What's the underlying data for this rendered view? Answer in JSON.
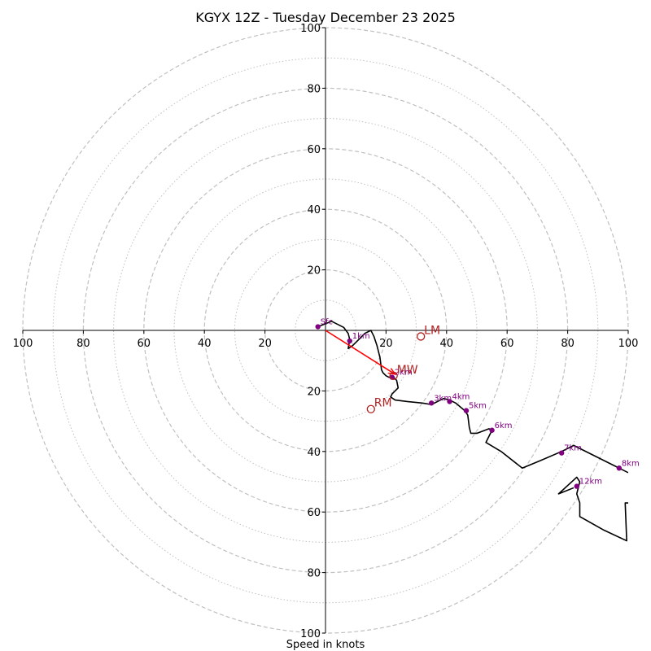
{
  "chart_data": {
    "type": "hodograph",
    "title": "KGYX 12Z - Tuesday December 23 2025",
    "xlabel": "Speed in knots",
    "range": [
      -100,
      100
    ],
    "ring_major_knots": [
      20,
      40,
      60,
      80,
      100
    ],
    "ring_minor_knots": [
      10,
      30,
      50,
      70,
      90
    ],
    "x_tick_labels": [
      "100",
      "80",
      "60",
      "40",
      "20",
      "20",
      "40",
      "60",
      "80",
      "100"
    ],
    "x_tick_values": [
      -100,
      -80,
      -60,
      -40,
      -20,
      20,
      40,
      60,
      80,
      100
    ],
    "y_tick_labels": [
      "100",
      "80",
      "60",
      "40",
      "20",
      "20",
      "40",
      "60",
      "80",
      "100"
    ],
    "y_tick_values": [
      100,
      80,
      60,
      40,
      20,
      -20,
      -40,
      -60,
      -80,
      -100
    ],
    "trace": [
      [
        -2.5,
        1.2
      ],
      [
        2,
        3
      ],
      [
        6,
        1
      ],
      [
        7.5,
        -1
      ],
      [
        8,
        -3
      ],
      [
        7.5,
        -6
      ],
      [
        9,
        -5
      ],
      [
        11,
        -3
      ],
      [
        13,
        -1
      ],
      [
        15,
        0
      ],
      [
        16,
        -2
      ],
      [
        17,
        -5
      ],
      [
        18,
        -9
      ],
      [
        18.5,
        -13
      ],
      [
        19,
        -14
      ],
      [
        20,
        -15
      ],
      [
        21,
        -15.5
      ],
      [
        22,
        -15
      ],
      [
        23.5,
        -16.5
      ],
      [
        24,
        -19
      ],
      [
        22,
        -21
      ],
      [
        21.5,
        -22
      ],
      [
        23,
        -23
      ],
      [
        27,
        -23.5
      ],
      [
        32,
        -24
      ],
      [
        35,
        -24.5
      ],
      [
        37,
        -23.5
      ],
      [
        39,
        -22.5
      ],
      [
        41,
        -23
      ],
      [
        43,
        -24
      ],
      [
        46,
        -26.5
      ],
      [
        47,
        -28
      ],
      [
        47.5,
        -32
      ],
      [
        48,
        -34
      ],
      [
        50,
        -34
      ],
      [
        54,
        -32.5
      ],
      [
        55,
        -33
      ],
      [
        53,
        -37
      ],
      [
        58,
        -40
      ],
      [
        65,
        -45.5
      ],
      [
        71,
        -43
      ],
      [
        78,
        -40
      ],
      [
        82,
        -38
      ],
      [
        90,
        -42
      ],
      [
        97,
        -45.5
      ],
      [
        100,
        -47
      ]
    ],
    "trace2": [
      [
        100,
        -57
      ],
      [
        99,
        -57
      ],
      [
        99.5,
        -69.5
      ],
      [
        92,
        -66
      ],
      [
        84,
        -61.5
      ],
      [
        84,
        -57
      ],
      [
        83,
        -54
      ],
      [
        84,
        -50
      ],
      [
        83,
        -48.5
      ],
      [
        77,
        -54
      ],
      [
        82,
        -52
      ]
    ],
    "height_markers": [
      {
        "label": "Sfc",
        "u": -2.5,
        "v": 1.2
      },
      {
        "label": "1km",
        "u": 8,
        "v": -3.5
      },
      {
        "label": "2km",
        "u": 22,
        "v": -15.5
      },
      {
        "label": "3km",
        "u": 35,
        "v": -24
      },
      {
        "label": "4km",
        "u": 41,
        "v": -23.5
      },
      {
        "label": "5km",
        "u": 46.5,
        "v": -26.5
      },
      {
        "label": "6km",
        "u": 55,
        "v": -33
      },
      {
        "label": "7km",
        "u": 78,
        "v": -40.5
      },
      {
        "label": "8km",
        "u": 97,
        "v": -45.5
      },
      {
        "label": "12km",
        "u": 83,
        "v": -51.5
      }
    ],
    "motions": [
      {
        "label": "LM",
        "u": 31.5,
        "v": -2
      },
      {
        "label": "MW",
        "u": 22.5,
        "v": -15
      },
      {
        "label": "RM",
        "u": 15,
        "v": -26
      }
    ],
    "shear_vector": {
      "from": [
        0,
        0
      ],
      "to": [
        23,
        -14.5
      ]
    },
    "colors": {
      "trace": "#000000",
      "marker": "#800080",
      "motion": "#b22222",
      "shear": "#ff0000",
      "grid": "#c0c0c0"
    }
  }
}
